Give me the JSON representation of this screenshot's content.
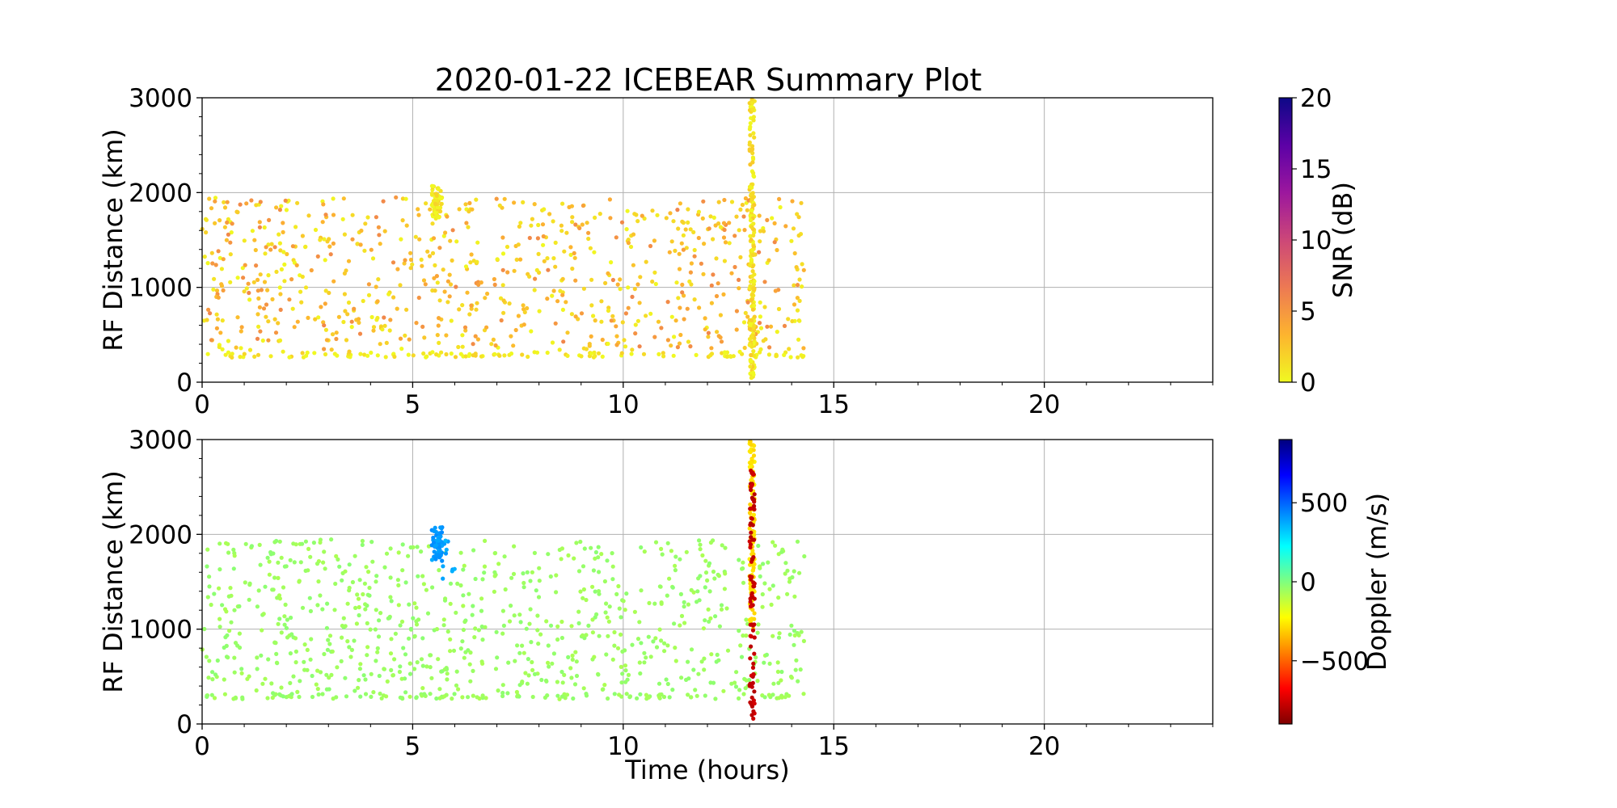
{
  "chart_data": {
    "title": "2020-01-22 ICEBEAR Summary Plot",
    "xlabel": "Time (hours)",
    "subplots": [
      {
        "type": "scatter",
        "ylabel": "RF Distance (km)",
        "xlim": [
          0,
          24
        ],
        "ylim": [
          0,
          3000
        ],
        "xticks": [
          0,
          5,
          10,
          15,
          20
        ],
        "yticks": [
          0,
          1000,
          2000,
          3000
        ],
        "grid": true,
        "color_variable": "snr",
        "colorbar": {
          "label": "SNR (dB)",
          "range": [
            0,
            20
          ],
          "ticks": [
            0,
            5,
            10,
            15,
            20
          ],
          "tick_labels": [
            "0",
            "5",
            "10",
            "15",
            "20"
          ],
          "colormap": "plasma_r",
          "stops": [
            "#f0f921",
            "#fdb42f",
            "#ed7953",
            "#cc4778",
            "#9c179e",
            "#5c01a6",
            "#0d0887"
          ]
        },
        "clusters": [
          {
            "x": [
              0,
              14.3
            ],
            "y": [
              260,
              320
            ],
            "count": 120,
            "value": 0.5
          },
          {
            "x": [
              0,
              14.3
            ],
            "y": [
              320,
              1950
            ],
            "count": 520,
            "value": 1.5
          },
          {
            "x": [
              0,
              14.3
            ],
            "y": [
              320,
              1950
            ],
            "count": 260,
            "value": 4.5
          },
          {
            "x": [
              5.45,
              5.7
            ],
            "y": [
              1720,
              2080
            ],
            "count": 60,
            "value": 0.8
          },
          {
            "x": [
              13.0,
              13.12
            ],
            "y": [
              40,
              2980
            ],
            "count": 200,
            "value": 1.0
          }
        ]
      },
      {
        "type": "scatter",
        "ylabel": "RF Distance (km)",
        "xlim": [
          0,
          24
        ],
        "ylim": [
          0,
          3000
        ],
        "xticks": [
          0,
          5,
          10,
          15,
          20
        ],
        "yticks": [
          0,
          1000,
          2000,
          3000
        ],
        "grid": true,
        "color_variable": "doppler",
        "colorbar": {
          "label": "Doppler (m/s)",
          "range": [
            -900,
            900
          ],
          "ticks": [
            -500,
            0,
            500
          ],
          "tick_labels": [
            "−500",
            "0",
            "500"
          ],
          "colormap": "jet_r",
          "stops": [
            "#7f0000",
            "#ff0000",
            "#ff7f00",
            "#ffff00",
            "#7fff7f",
            "#00ffff",
            "#007fff",
            "#0000ff",
            "#00007f"
          ]
        },
        "clusters": [
          {
            "x": [
              0,
              14.3
            ],
            "y": [
              260,
              320
            ],
            "count": 120,
            "value": -50
          },
          {
            "x": [
              0,
              14.3
            ],
            "y": [
              320,
              1950
            ],
            "count": 780,
            "value": -50
          },
          {
            "x": [
              5.45,
              5.7
            ],
            "y": [
              1720,
              2080
            ],
            "count": 60,
            "value": 400
          },
          {
            "x": [
              5.7,
              6.0
            ],
            "y": [
              1500,
              1950
            ],
            "count": 10,
            "value": 380
          },
          {
            "x": [
              13.0,
              13.12
            ],
            "y": [
              1000,
              2980
            ],
            "count": 120,
            "value": -280
          },
          {
            "x": [
              13.0,
              13.12
            ],
            "y": [
              50,
              2700
            ],
            "count": 90,
            "value": -780
          }
        ]
      }
    ]
  }
}
